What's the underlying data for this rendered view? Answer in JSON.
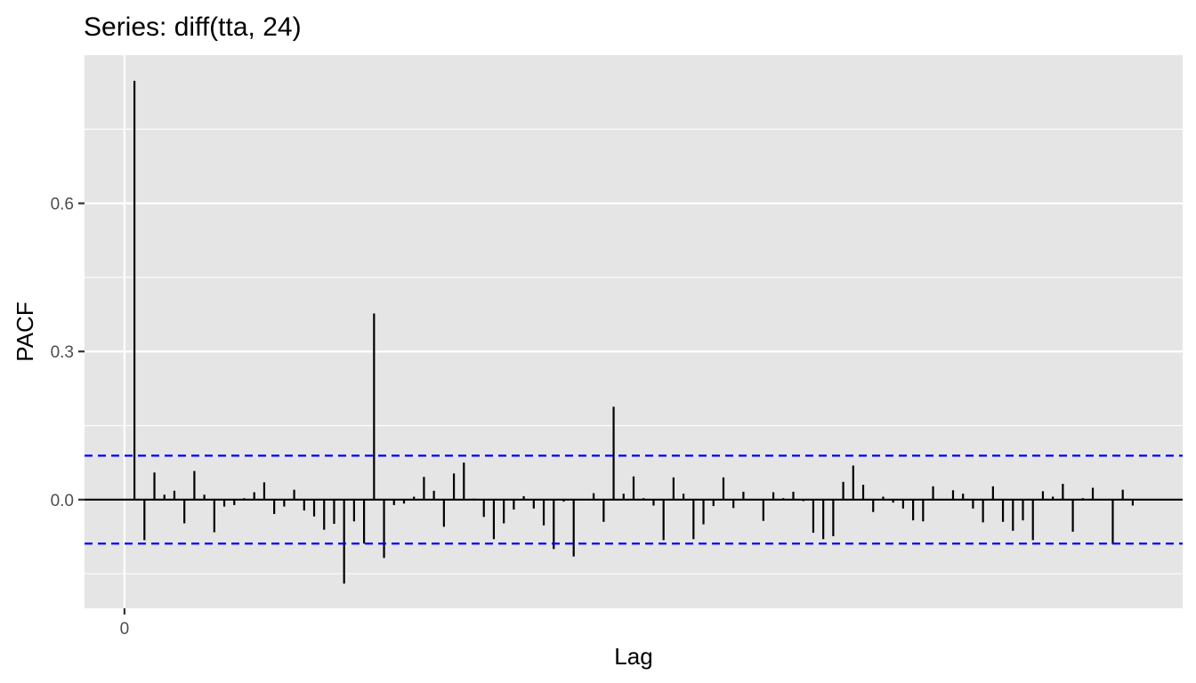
{
  "chart_data": {
    "type": "bar",
    "title": "Series: diff(tta, 24)",
    "xlabel": "Lag",
    "ylabel": "PACF",
    "x_ticks": [
      0
    ],
    "y_ticks": [
      0.0,
      0.3,
      0.6
    ],
    "y_tick_labels": [
      "0.0",
      "0.3",
      "0.6"
    ],
    "xlim": [
      -4,
      106
    ],
    "ylim": [
      -0.22,
      0.9
    ],
    "grid": true,
    "confidence_limit": 0.089,
    "series": [
      {
        "lags": [
          1,
          2,
          3,
          4,
          5,
          6,
          7,
          8,
          9,
          10,
          11,
          12,
          13,
          14,
          15,
          16,
          17,
          18,
          19,
          20,
          21,
          22,
          23,
          24,
          25,
          26,
          27,
          28,
          29,
          30,
          31,
          32,
          33,
          34,
          35,
          36,
          37,
          38,
          39,
          40,
          41,
          42,
          43,
          44,
          45,
          46,
          47,
          48,
          49,
          50,
          51,
          52,
          53,
          54,
          55,
          56,
          57,
          58,
          59,
          60,
          61,
          62,
          63,
          64,
          65,
          66,
          67,
          68,
          69,
          70,
          71,
          72,
          73,
          74,
          75,
          76,
          77,
          78,
          79,
          80,
          81,
          82,
          83,
          84,
          85,
          86,
          87,
          88,
          89,
          90,
          91,
          92,
          93,
          94,
          95,
          96,
          97,
          98,
          99,
          100,
          101,
          102
        ],
        "values": [
          0.848,
          -0.082,
          0.055,
          0.01,
          0.018,
          -0.048,
          0.058,
          0.01,
          -0.066,
          -0.014,
          -0.011,
          0.003,
          0.015,
          0.035,
          -0.029,
          -0.014,
          0.02,
          -0.022,
          -0.034,
          -0.061,
          -0.049,
          -0.17,
          -0.044,
          -0.089,
          0.377,
          -0.118,
          -0.011,
          -0.008,
          0.006,
          0.046,
          0.018,
          -0.055,
          0.053,
          0.075,
          0.002,
          -0.035,
          -0.08,
          -0.048,
          -0.02,
          0.007,
          -0.018,
          -0.052,
          -0.1,
          -0.004,
          -0.115,
          0.0,
          0.013,
          -0.045,
          0.188,
          0.012,
          0.047,
          0.003,
          -0.012,
          -0.082,
          0.045,
          0.012,
          -0.08,
          -0.05,
          -0.013,
          0.045,
          -0.017,
          0.016,
          0.0,
          -0.043,
          0.015,
          0.003,
          0.016,
          -0.003,
          -0.067,
          -0.08,
          -0.074,
          0.036,
          0.069,
          0.03,
          -0.025,
          0.006,
          -0.006,
          -0.018,
          -0.042,
          -0.044,
          0.027,
          0.0,
          0.019,
          0.012,
          -0.018,
          -0.046,
          0.027,
          -0.045,
          -0.063,
          -0.042,
          -0.082,
          0.017,
          0.006,
          0.032,
          -0.065,
          0.003,
          0.024,
          0.0,
          -0.09,
          0.02,
          -0.012,
          0.0
        ]
      }
    ]
  }
}
